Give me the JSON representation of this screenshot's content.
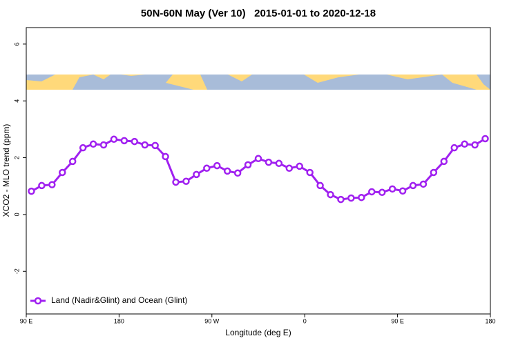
{
  "chart_data": {
    "type": "line",
    "title": "50N-60N May (Ver 10)   2015-01-01 to 2020-12-18",
    "xlabel": "Longitude (deg E)",
    "ylabel": "XCO2 - MLO trend (ppm)",
    "x": [
      95,
      105,
      115,
      125,
      135,
      145,
      155,
      165,
      175,
      185,
      195,
      205,
      215,
      225,
      235,
      245,
      255,
      265,
      275,
      285,
      295,
      305,
      315,
      325,
      335,
      345,
      355,
      365,
      375,
      385,
      395,
      405,
      415,
      425,
      435,
      445,
      455,
      465,
      475,
      485,
      495,
      505,
      515,
      525,
      535
    ],
    "series": [
      {
        "name": "Land (Nadir&Glint) and Ocean (Glint)",
        "color": "#a020f0",
        "values": [
          0.82,
          1.02,
          1.05,
          1.48,
          1.87,
          2.35,
          2.48,
          2.45,
          2.65,
          2.6,
          2.57,
          2.45,
          2.43,
          2.04,
          1.14,
          1.17,
          1.41,
          1.63,
          1.72,
          1.53,
          1.46,
          1.75,
          1.97,
          1.84,
          1.8,
          1.63,
          1.7,
          1.48,
          1.02,
          0.7,
          0.53,
          0.58,
          0.6,
          0.8,
          0.78,
          0.9,
          0.83,
          1.02,
          1.07,
          1.48,
          1.87,
          2.35,
          2.48,
          2.45,
          2.67
        ]
      }
    ],
    "xlim": [
      90,
      540
    ],
    "xticks": [
      {
        "value": 90,
        "label": "90 E"
      },
      180,
      {
        "value": 270,
        "label": "90 W"
      },
      {
        "value": 360,
        "label": "0"
      },
      {
        "value": 450,
        "label": "90 E"
      },
      {
        "value": 540,
        "label": "180"
      }
    ],
    "ylim": [
      -3.5,
      6.58
    ],
    "yticks": [
      -2,
      0,
      2,
      4,
      6
    ],
    "legend": "bottomleft"
  }
}
